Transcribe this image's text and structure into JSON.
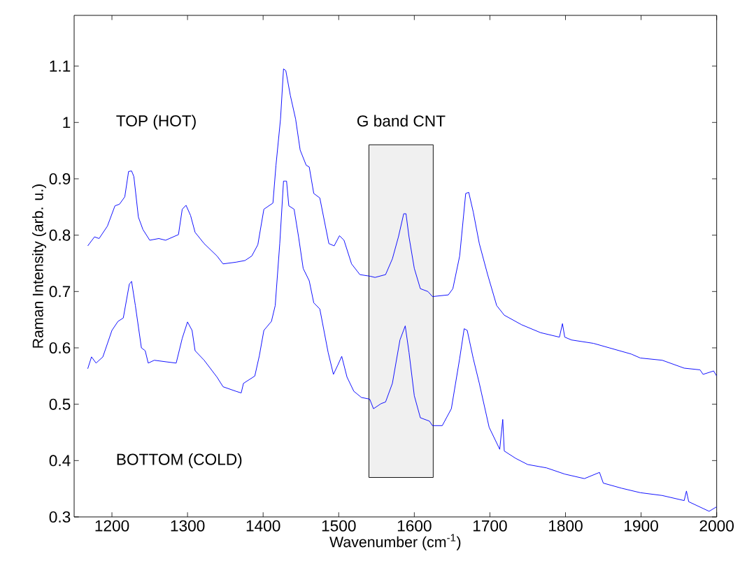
{
  "chart_data": {
    "type": "line",
    "xlabel": "Wavenumber (cm$^{-1}$)",
    "ylabel": "Raman Intensity (arb. u.)",
    "xlim": [
      1150,
      2000
    ],
    "ylim": [
      0.3,
      1.19
    ],
    "xticks": [
      1200,
      1300,
      1400,
      1500,
      1600,
      1700,
      1800,
      1900,
      2000
    ],
    "yticks": [
      0.3,
      0.4,
      0.5,
      0.6,
      0.7,
      0.8,
      0.9,
      1,
      1.1
    ],
    "annotations": [
      "TOP (HOT)",
      "BOTTOM (COLD)"
    ],
    "bands": [
      {
        "axis": "x",
        "from": 1540,
        "to": 1625,
        "label": "G band CNT",
        "color": "#f0f0f0"
      }
    ],
    "series": [
      {
        "color": "#0000ff",
        "x": [
          1168,
          1177,
          1183,
          1194,
          1204,
          1210,
          1217,
          1222,
          1226,
          1229,
          1235,
          1241,
          1250,
          1262,
          1271,
          1288,
          1293,
          1298,
          1304,
          1310,
          1322,
          1339,
          1347,
          1364,
          1376,
          1385,
          1393,
          1401,
          1413,
          1417,
          1423,
          1427,
          1430,
          1436,
          1443,
          1449,
          1457,
          1461,
          1467,
          1475,
          1487,
          1494,
          1501,
          1507,
          1517,
          1528,
          1542,
          1548,
          1562,
          1571,
          1579,
          1586,
          1589,
          1593,
          1600,
          1608,
          1618,
          1624,
          1645,
          1651,
          1660,
          1668,
          1672,
          1678,
          1686,
          1697,
          1709,
          1719,
          1742,
          1767,
          1792,
          1796,
          1799,
          1808,
          1837,
          1858,
          1887,
          1899,
          1928,
          1957,
          1978,
          1982,
          1996,
          2000
        ],
        "values": [
          0.781,
          0.797,
          0.794,
          0.816,
          0.852,
          0.855,
          0.868,
          0.913,
          0.914,
          0.904,
          0.832,
          0.81,
          0.791,
          0.794,
          0.791,
          0.801,
          0.846,
          0.853,
          0.835,
          0.805,
          0.785,
          0.763,
          0.749,
          0.752,
          0.755,
          0.763,
          0.783,
          0.846,
          0.857,
          0.924,
          1.006,
          1.095,
          1.092,
          1.048,
          1.006,
          0.951,
          0.924,
          0.921,
          0.874,
          0.866,
          0.785,
          0.781,
          0.799,
          0.791,
          0.749,
          0.73,
          0.727,
          0.725,
          0.73,
          0.758,
          0.797,
          0.838,
          0.838,
          0.797,
          0.741,
          0.705,
          0.7,
          0.691,
          0.694,
          0.705,
          0.763,
          0.874,
          0.876,
          0.841,
          0.785,
          0.73,
          0.675,
          0.658,
          0.641,
          0.627,
          0.619,
          0.643,
          0.619,
          0.614,
          0.608,
          0.6,
          0.589,
          0.582,
          0.578,
          0.564,
          0.561,
          0.553,
          0.559,
          0.55
        ]
      },
      {
        "color": "#0000ff",
        "x": [
          1168,
          1173,
          1179,
          1188,
          1200,
          1208,
          1215,
          1223,
          1226,
          1231,
          1239,
          1244,
          1248,
          1256,
          1273,
          1285,
          1293,
          1300,
          1306,
          1310,
          1322,
          1339,
          1347,
          1364,
          1371,
          1374,
          1389,
          1395,
          1401,
          1411,
          1416,
          1422,
          1427,
          1431,
          1434,
          1441,
          1447,
          1453,
          1461,
          1467,
          1475,
          1486,
          1493,
          1499,
          1504,
          1511,
          1520,
          1530,
          1541,
          1546,
          1556,
          1562,
          1571,
          1581,
          1588,
          1593,
          1600,
          1608,
          1620,
          1624,
          1637,
          1649,
          1660,
          1666,
          1670,
          1678,
          1686,
          1699,
          1713,
          1717,
          1719,
          1734,
          1750,
          1775,
          1799,
          1825,
          1845,
          1850,
          1874,
          1899,
          1928,
          1957,
          1960,
          1963,
          1982,
          1990,
          2000
        ],
        "values": [
          0.563,
          0.584,
          0.573,
          0.584,
          0.631,
          0.647,
          0.653,
          0.713,
          0.718,
          0.675,
          0.6,
          0.595,
          0.573,
          0.578,
          0.575,
          0.573,
          0.617,
          0.646,
          0.631,
          0.595,
          0.578,
          0.548,
          0.531,
          0.523,
          0.52,
          0.537,
          0.55,
          0.586,
          0.631,
          0.647,
          0.675,
          0.785,
          0.896,
          0.896,
          0.852,
          0.846,
          0.796,
          0.741,
          0.719,
          0.68,
          0.669,
          0.592,
          0.553,
          0.57,
          0.585,
          0.548,
          0.523,
          0.512,
          0.509,
          0.492,
          0.501,
          0.504,
          0.537,
          0.614,
          0.639,
          0.592,
          0.515,
          0.476,
          0.47,
          0.462,
          0.462,
          0.492,
          0.581,
          0.634,
          0.631,
          0.581,
          0.537,
          0.459,
          0.42,
          0.473,
          0.417,
          0.404,
          0.393,
          0.387,
          0.376,
          0.368,
          0.379,
          0.36,
          0.351,
          0.343,
          0.338,
          0.329,
          0.346,
          0.327,
          0.315,
          0.31,
          0.318
        ]
      }
    ]
  }
}
